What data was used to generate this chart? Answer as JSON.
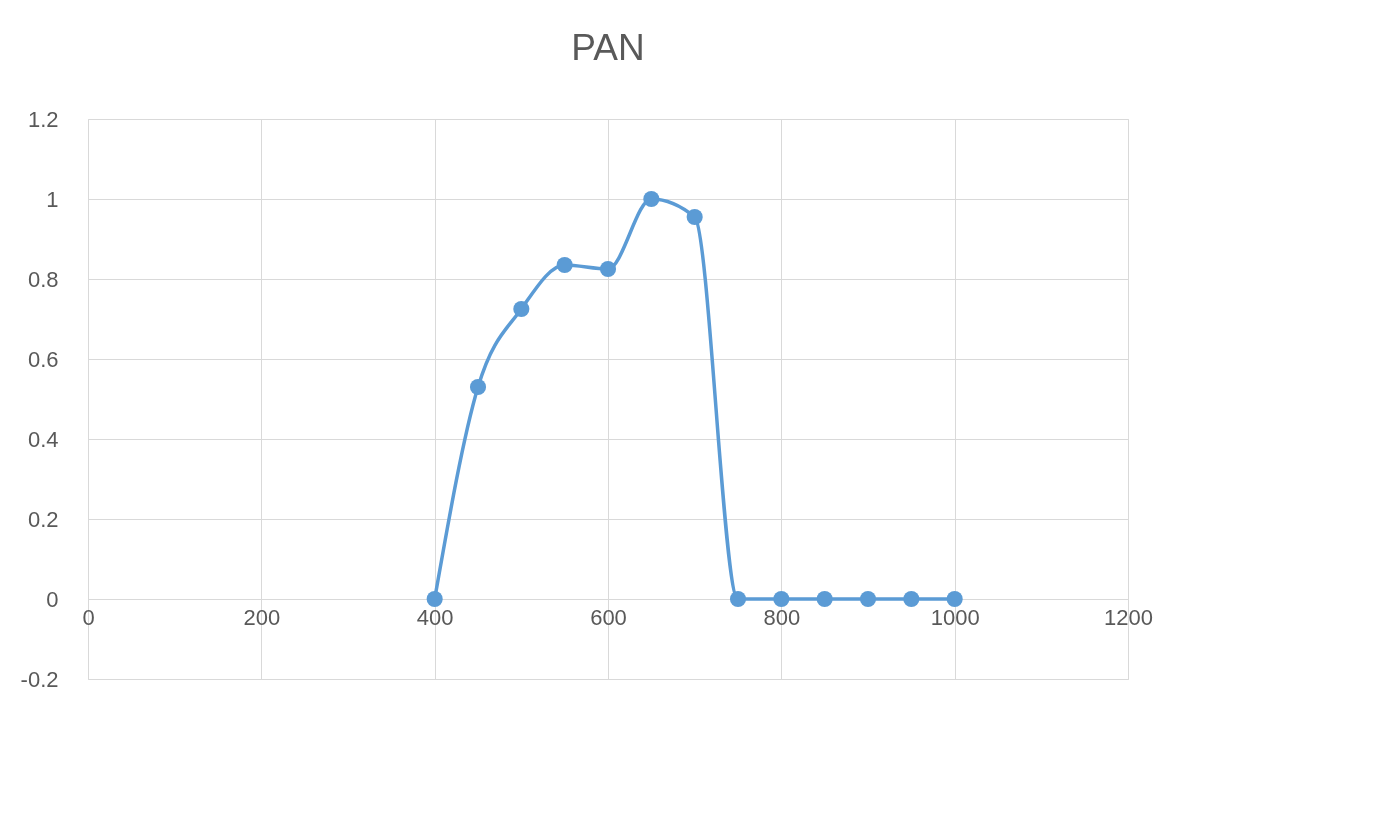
{
  "chart_data": {
    "type": "line",
    "title": "PAN",
    "x": [
      400,
      450,
      500,
      550,
      600,
      650,
      700,
      750,
      800,
      850,
      900,
      950,
      1000
    ],
    "series": [
      {
        "color": "#5b9bd5",
        "values": [
          0,
          0.53,
          0.725,
          0.835,
          0.825,
          1.0,
          0.955,
          0,
          0,
          0,
          0,
          0,
          0
        ]
      }
    ],
    "xlim": [
      0,
      1200
    ],
    "xticks": [
      0,
      200,
      400,
      600,
      800,
      1000,
      1200
    ],
    "ylim": [
      -0.2,
      1.2
    ],
    "yticks": [
      -0.2,
      0,
      0.2,
      0.4,
      0.6,
      0.8,
      1,
      1.2
    ],
    "grid": true,
    "marker": "circle",
    "line_style": "solid"
  }
}
